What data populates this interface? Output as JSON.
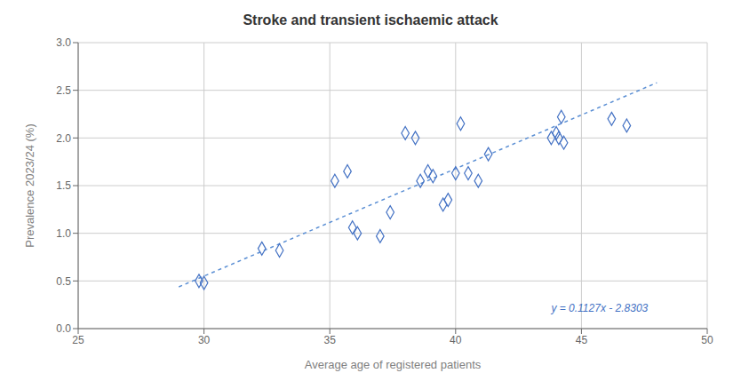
{
  "chart_data": {
    "type": "scatter",
    "title": "Stroke and transient ischaemic attack",
    "xlabel": "Average age of registered patients",
    "ylabel": "Prevalence 2023/24 (%)",
    "xlim": [
      25,
      50
    ],
    "ylim": [
      0.0,
      3.0
    ],
    "xticks": [
      25,
      30,
      35,
      40,
      45,
      50
    ],
    "yticks": [
      {
        "value": 0,
        "label": "0.0"
      },
      0.5,
      {
        "value": 1,
        "label": "1.0"
      },
      1.5,
      {
        "value": 2,
        "label": "2.0"
      },
      2.5,
      {
        "value": 3,
        "label": "3.0"
      }
    ],
    "grid": true,
    "series": [
      {
        "type": "scatter",
        "marker": "diamond",
        "color": "#4472c4",
        "x": [
          29.8,
          30.0,
          32.3,
          33.0,
          35.2,
          35.7,
          35.9,
          36.1,
          37.0,
          37.4,
          38.0,
          38.4,
          38.6,
          38.9,
          39.1,
          39.5,
          39.7,
          40.0,
          40.2,
          40.5,
          40.9,
          41.3,
          43.8,
          44.0,
          44.1,
          44.2,
          44.3,
          46.2,
          46.8
        ],
        "values": [
          0.5,
          0.48,
          0.84,
          0.82,
          1.55,
          1.65,
          1.06,
          1.0,
          0.97,
          1.22,
          2.05,
          2.0,
          1.55,
          1.65,
          1.6,
          1.3,
          1.35,
          1.63,
          2.15,
          1.63,
          1.55,
          1.83,
          2.0,
          2.05,
          2.0,
          2.22,
          1.95,
          2.2,
          2.13
        ]
      },
      {
        "type": "line",
        "line_style": "dashed",
        "color": "#5b8fd4",
        "x": [
          29.0,
          48.0
        ],
        "values": [
          0.438,
          2.5793
        ]
      }
    ],
    "annotations": [
      {
        "text": "y = 0.1127x - 2.8303",
        "x": 43.8,
        "y": 0.18,
        "color": "#4472c4"
      }
    ]
  }
}
